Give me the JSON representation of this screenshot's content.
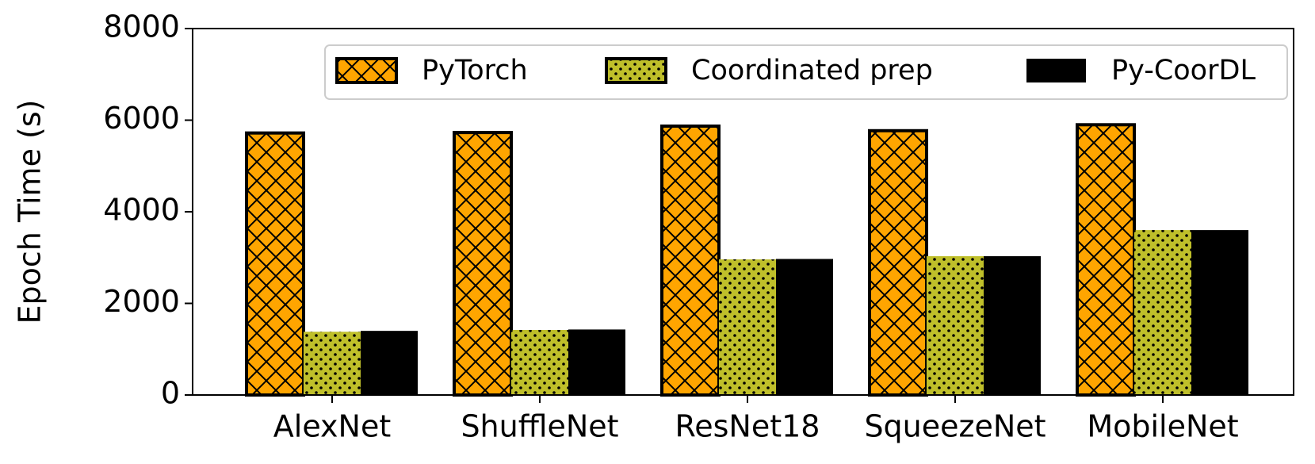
{
  "chart_data": {
    "type": "bar",
    "y_label": "Epoch Time (s)",
    "categories": [
      "AlexNet",
      "ShuffleNet",
      "ResNet18",
      "SqueezeNet",
      "MobileNet"
    ],
    "series": [
      {
        "name": "PyTorch",
        "color": "#ffa500",
        "hatch": "cross",
        "values": [
          5720,
          5730,
          5870,
          5770,
          5900
        ]
      },
      {
        "name": "Coordinated prep",
        "color": "#bfbf2a",
        "hatch": "dots",
        "values": [
          1380,
          1420,
          2960,
          3030,
          3600
        ]
      },
      {
        "name": "Py-CoorDL",
        "color": "#000000",
        "hatch": "none",
        "values": [
          1400,
          1430,
          2970,
          3030,
          3600
        ]
      }
    ],
    "ylim": [
      0,
      8000
    ],
    "yticks": [
      0,
      2000,
      4000,
      6000,
      8000
    ],
    "legend": "top-right"
  }
}
